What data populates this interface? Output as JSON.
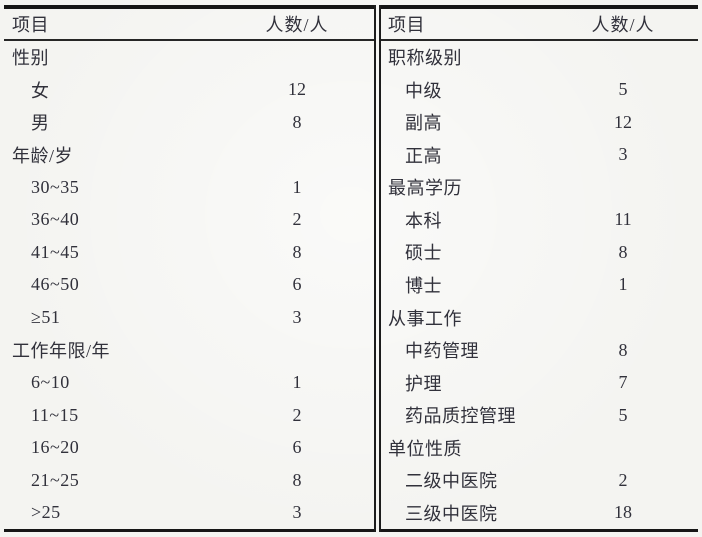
{
  "colors": {
    "background": "#f4f4f1",
    "text": "#31313b",
    "rule_line": "#1c1c1c"
  },
  "table": {
    "left": {
      "header": {
        "item": "项目",
        "count": "人数/人"
      },
      "rows": [
        {
          "label": "性别",
          "value": "",
          "indent": 0
        },
        {
          "label": "女",
          "value": "12",
          "indent": 1
        },
        {
          "label": "男",
          "value": "8",
          "indent": 1
        },
        {
          "label": "年龄/岁",
          "value": "",
          "indent": 0
        },
        {
          "label": "30~35",
          "value": "1",
          "indent": 1
        },
        {
          "label": "36~40",
          "value": "2",
          "indent": 1
        },
        {
          "label": "41~45",
          "value": "8",
          "indent": 1
        },
        {
          "label": "46~50",
          "value": "6",
          "indent": 1
        },
        {
          "label": "≥51",
          "value": "3",
          "indent": 1
        },
        {
          "label": "工作年限/年",
          "value": "",
          "indent": 0
        },
        {
          "label": "6~10",
          "value": "1",
          "indent": 1
        },
        {
          "label": "11~15",
          "value": "2",
          "indent": 1
        },
        {
          "label": "16~20",
          "value": "6",
          "indent": 1
        },
        {
          "label": "21~25",
          "value": "8",
          "indent": 1
        },
        {
          "label": ">25",
          "value": "3",
          "indent": 1
        }
      ]
    },
    "right": {
      "header": {
        "item": "项目",
        "count": "人数/人"
      },
      "rows": [
        {
          "label": "职称级别",
          "value": "",
          "indent": 0
        },
        {
          "label": "中级",
          "value": "5",
          "indent": 1
        },
        {
          "label": "副高",
          "value": "12",
          "indent": 1
        },
        {
          "label": "正高",
          "value": "3",
          "indent": 1
        },
        {
          "label": "最高学历",
          "value": "",
          "indent": 0
        },
        {
          "label": "本科",
          "value": "11",
          "indent": 1
        },
        {
          "label": "硕士",
          "value": "8",
          "indent": 1
        },
        {
          "label": "博士",
          "value": "1",
          "indent": 1
        },
        {
          "label": "从事工作",
          "value": "",
          "indent": 0
        },
        {
          "label": "中药管理",
          "value": "8",
          "indent": 1
        },
        {
          "label": "护理",
          "value": "7",
          "indent": 1
        },
        {
          "label": "药品质控管理",
          "value": "5",
          "indent": 1
        },
        {
          "label": "单位性质",
          "value": "",
          "indent": 0
        },
        {
          "label": "二级中医院",
          "value": "2",
          "indent": 1
        },
        {
          "label": "三级中医院",
          "value": "18",
          "indent": 1
        }
      ]
    }
  }
}
